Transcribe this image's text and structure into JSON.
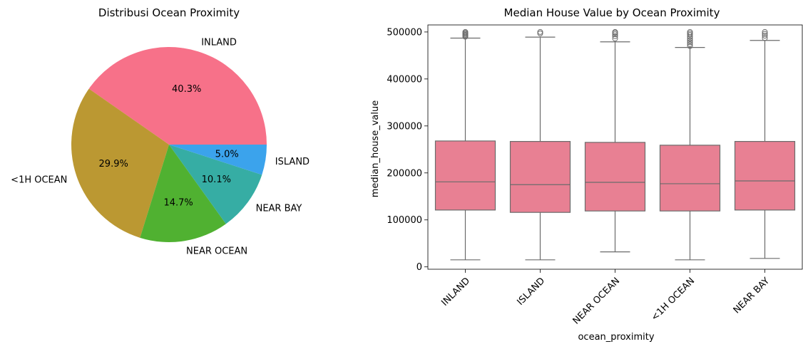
{
  "chart_data": [
    {
      "type": "pie",
      "title": "Distribusi Ocean Proximity",
      "slices": [
        {
          "label": "INLAND",
          "value": 40.3,
          "pct_label": "40.3%",
          "color": "#f77189"
        },
        {
          "label": "<1H OCEAN",
          "value": 29.9,
          "pct_label": "29.9%",
          "color": "#bb9832"
        },
        {
          "label": "NEAR OCEAN",
          "value": 14.7,
          "pct_label": "14.7%",
          "color": "#50b131"
        },
        {
          "label": "NEAR BAY",
          "value": 10.1,
          "pct_label": "10.1%",
          "color": "#36ada4"
        },
        {
          "label": "ISLAND",
          "value": 5.0,
          "pct_label": "5.0%",
          "color": "#3ba3ec"
        }
      ]
    },
    {
      "type": "box",
      "title": "Median House Value by Ocean Proximity",
      "xlabel": "ocean_proximity",
      "ylabel": "median_house_value",
      "ylim": [
        -5000,
        515000
      ],
      "yticks": [
        0,
        100000,
        200000,
        300000,
        400000,
        500000
      ],
      "box_color": "#e88093",
      "categories": [
        "INLAND",
        "ISLAND",
        "NEAR OCEAN",
        "<1H OCEAN",
        "NEAR BAY"
      ],
      "boxes": [
        {
          "category": "INLAND",
          "whisker_low": 15000,
          "q1": 121000,
          "median": 181000,
          "q3": 268000,
          "whisker_high": 487000,
          "outliers": [
            490000,
            492000,
            494000,
            496000,
            498000,
            500000
          ]
        },
        {
          "category": "ISLAND",
          "whisker_low": 15000,
          "q1": 116000,
          "median": 175000,
          "q3": 267000,
          "whisker_high": 489000,
          "outliers": [
            497000,
            500000
          ]
        },
        {
          "category": "NEAR OCEAN",
          "whisker_low": 32000,
          "q1": 119000,
          "median": 180000,
          "q3": 265000,
          "whisker_high": 479000,
          "outliers": [
            486000,
            491000,
            495000,
            498000,
            500000
          ]
        },
        {
          "category": "<1H OCEAN",
          "whisker_low": 15000,
          "q1": 119000,
          "median": 177000,
          "q3": 259000,
          "whisker_high": 467000,
          "outliers": [
            470000,
            474000,
            478000,
            482000,
            486000,
            490000,
            494000,
            497000,
            500000
          ]
        },
        {
          "category": "NEAR BAY",
          "whisker_low": 18000,
          "q1": 121000,
          "median": 183000,
          "q3": 267000,
          "whisker_high": 482000,
          "outliers": [
            487000,
            492000,
            496000,
            500000
          ]
        }
      ]
    }
  ]
}
